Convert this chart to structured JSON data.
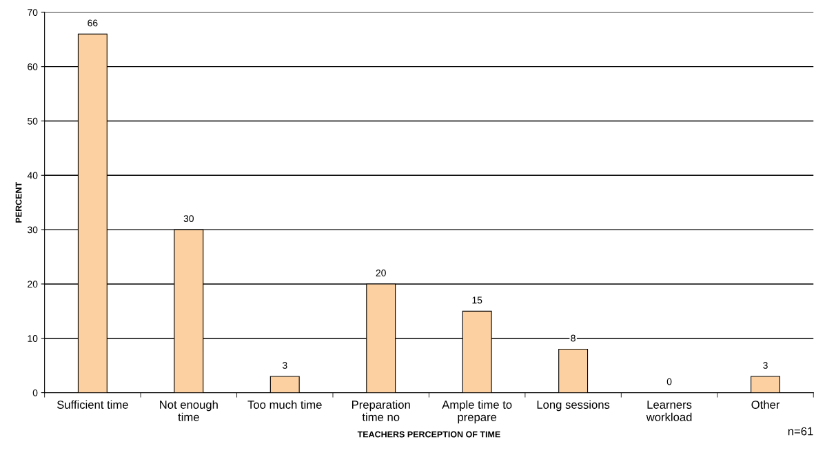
{
  "chart_data": {
    "type": "bar",
    "xlabel": "TEACHERS PERCEPTION OF TIME",
    "ylabel": "PERCENT",
    "categories": [
      "Sufficient time",
      "Not enough\ntime",
      "Too much time",
      "Preparation\ntime no",
      "Ample time to\nprepare",
      "Long sessions",
      "Learners\nworkload",
      "Other"
    ],
    "values": [
      66,
      30,
      3,
      20,
      15,
      8,
      0,
      3
    ],
    "color": "#fcd0a0",
    "ylim": [
      0,
      70
    ],
    "yticks": [
      0,
      10,
      20,
      30,
      40,
      50,
      60,
      70
    ],
    "grid": "y",
    "data_labels": true,
    "annotations": [
      "n=61"
    ]
  }
}
